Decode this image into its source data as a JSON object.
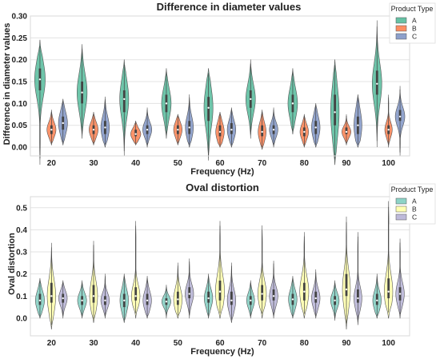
{
  "chart_data": [
    {
      "type": "violin",
      "title": "Difference in diameter values",
      "xlabel": "Frequency (Hz)",
      "ylabel": "Difference in diameter values",
      "categories": [
        "20",
        "30",
        "40",
        "50",
        "60",
        "70",
        "80",
        "90",
        "100"
      ],
      "ylim": [
        -0.02,
        0.3
      ],
      "yticks": [
        "0.00",
        "0.05",
        "0.10",
        "0.15",
        "0.20",
        "0.25",
        "0.30"
      ],
      "grid": true,
      "legend": {
        "title": "Product Type",
        "position": "top-right",
        "entries": [
          "A",
          "B",
          "C"
        ]
      },
      "series": [
        {
          "name": "A",
          "color": "#66c2a5",
          "stats": [
            {
              "min": -0.04,
              "q1": 0.13,
              "median": 0.155,
              "q3": 0.18,
              "max": 0.245,
              "width": 1.0
            },
            {
              "min": 0.02,
              "q1": 0.1,
              "median": 0.125,
              "q3": 0.15,
              "max": 0.235,
              "width": 0.95
            },
            {
              "min": -0.02,
              "q1": 0.08,
              "median": 0.11,
              "q3": 0.13,
              "max": 0.2,
              "width": 0.85
            },
            {
              "min": 0.02,
              "q1": 0.08,
              "median": 0.1,
              "q3": 0.12,
              "max": 0.18,
              "width": 0.9
            },
            {
              "min": -0.03,
              "q1": 0.06,
              "median": 0.09,
              "q3": 0.115,
              "max": 0.18,
              "width": 0.85
            },
            {
              "min": 0.02,
              "q1": 0.09,
              "median": 0.11,
              "q3": 0.13,
              "max": 0.2,
              "width": 0.9
            },
            {
              "min": 0.03,
              "q1": 0.08,
              "median": 0.1,
              "q3": 0.12,
              "max": 0.18,
              "width": 0.9
            },
            {
              "min": -0.04,
              "q1": 0.05,
              "median": 0.08,
              "q3": 0.12,
              "max": 0.2,
              "width": 0.8
            },
            {
              "min": 0.0,
              "q1": 0.12,
              "median": 0.145,
              "q3": 0.175,
              "max": 0.29,
              "width": 0.9
            }
          ]
        },
        {
          "name": "B",
          "color": "#fc8d62",
          "stats": [
            {
              "min": 0.005,
              "q1": 0.03,
              "median": 0.04,
              "q3": 0.05,
              "max": 0.085,
              "width": 0.85
            },
            {
              "min": 0.005,
              "q1": 0.03,
              "median": 0.04,
              "q3": 0.05,
              "max": 0.08,
              "width": 0.85
            },
            {
              "min": 0.005,
              "q1": 0.025,
              "median": 0.03,
              "q3": 0.04,
              "max": 0.06,
              "width": 0.95
            },
            {
              "min": 0.005,
              "q1": 0.03,
              "median": 0.04,
              "q3": 0.05,
              "max": 0.075,
              "width": 0.8
            },
            {
              "min": 0.0,
              "q1": 0.025,
              "median": 0.035,
              "q3": 0.05,
              "max": 0.08,
              "width": 0.8
            },
            {
              "min": -0.005,
              "q1": 0.025,
              "median": 0.035,
              "q3": 0.05,
              "max": 0.085,
              "width": 0.75
            },
            {
              "min": 0.0,
              "q1": 0.025,
              "median": 0.035,
              "q3": 0.045,
              "max": 0.075,
              "width": 0.8
            },
            {
              "min": 0.005,
              "q1": 0.03,
              "median": 0.035,
              "q3": 0.045,
              "max": 0.075,
              "width": 0.85
            },
            {
              "min": 0.0,
              "q1": 0.03,
              "median": 0.04,
              "q3": 0.05,
              "max": 0.12,
              "width": 0.7
            }
          ]
        },
        {
          "name": "C",
          "color": "#8da0cb",
          "stats": [
            {
              "min": 0.005,
              "q1": 0.04,
              "median": 0.055,
              "q3": 0.07,
              "max": 0.11,
              "width": 0.85
            },
            {
              "min": 0.0,
              "q1": 0.03,
              "median": 0.045,
              "q3": 0.06,
              "max": 0.115,
              "width": 0.8
            },
            {
              "min": 0.0,
              "q1": 0.03,
              "median": 0.04,
              "q3": 0.05,
              "max": 0.09,
              "width": 0.85
            },
            {
              "min": 0.0,
              "q1": 0.03,
              "median": 0.045,
              "q3": 0.06,
              "max": 0.12,
              "width": 0.75
            },
            {
              "min": 0.0,
              "q1": 0.03,
              "median": 0.04,
              "q3": 0.055,
              "max": 0.09,
              "width": 0.8
            },
            {
              "min": 0.0,
              "q1": 0.03,
              "median": 0.04,
              "q3": 0.05,
              "max": 0.09,
              "width": 0.8
            },
            {
              "min": 0.0,
              "q1": 0.03,
              "median": 0.045,
              "q3": 0.06,
              "max": 0.1,
              "width": 0.8
            },
            {
              "min": 0.0,
              "q1": 0.03,
              "median": 0.05,
              "q3": 0.07,
              "max": 0.12,
              "width": 0.75
            },
            {
              "min": -0.02,
              "q1": 0.06,
              "median": 0.07,
              "q3": 0.085,
              "max": 0.14,
              "width": 0.9
            }
          ]
        }
      ]
    },
    {
      "type": "violin",
      "title": "Oval distortion",
      "xlabel": "Frequency (Hz)",
      "ylabel": "Oval distortion",
      "categories": [
        "20",
        "30",
        "40",
        "50",
        "60",
        "70",
        "80",
        "90",
        "100"
      ],
      "ylim": [
        -0.08,
        0.55
      ],
      "yticks": [
        "0.0",
        "0.1",
        "0.2",
        "0.3",
        "0.4",
        "0.5"
      ],
      "grid": true,
      "legend": {
        "title": "Product Type",
        "position": "top-right",
        "entries": [
          "A",
          "B",
          "C"
        ]
      },
      "series": [
        {
          "name": "A",
          "color": "#8dd3c7",
          "stats": [
            {
              "min": 0.0,
              "q1": 0.06,
              "median": 0.08,
              "q3": 0.11,
              "max": 0.18,
              "width": 0.85
            },
            {
              "min": 0.0,
              "q1": 0.06,
              "median": 0.08,
              "q3": 0.1,
              "max": 0.17,
              "width": 0.85
            },
            {
              "min": -0.02,
              "q1": 0.05,
              "median": 0.08,
              "q3": 0.11,
              "max": 0.2,
              "width": 0.8
            },
            {
              "min": 0.0,
              "q1": 0.06,
              "median": 0.075,
              "q3": 0.09,
              "max": 0.15,
              "width": 0.85
            },
            {
              "min": 0.0,
              "q1": 0.07,
              "median": 0.09,
              "q3": 0.12,
              "max": 0.2,
              "width": 0.8
            },
            {
              "min": 0.0,
              "q1": 0.06,
              "median": 0.08,
              "q3": 0.1,
              "max": 0.17,
              "width": 0.75
            },
            {
              "min": 0.0,
              "q1": 0.06,
              "median": 0.085,
              "q3": 0.11,
              "max": 0.19,
              "width": 0.8
            },
            {
              "min": -0.01,
              "q1": 0.06,
              "median": 0.08,
              "q3": 0.1,
              "max": 0.17,
              "width": 0.8
            },
            {
              "min": 0.0,
              "q1": 0.06,
              "median": 0.08,
              "q3": 0.11,
              "max": 0.2,
              "width": 0.8
            }
          ]
        },
        {
          "name": "B",
          "color": "#ffffb3",
          "stats": [
            {
              "min": -0.05,
              "q1": 0.07,
              "median": 0.1,
              "q3": 0.16,
              "max": 0.34,
              "width": 0.8
            },
            {
              "min": -0.02,
              "q1": 0.07,
              "median": 0.1,
              "q3": 0.15,
              "max": 0.35,
              "width": 0.75
            },
            {
              "min": 0.0,
              "q1": 0.08,
              "median": 0.1,
              "q3": 0.14,
              "max": 0.44,
              "width": 0.8
            },
            {
              "min": 0.0,
              "q1": 0.06,
              "median": 0.085,
              "q3": 0.12,
              "max": 0.25,
              "width": 0.8
            },
            {
              "min": 0.0,
              "q1": 0.08,
              "median": 0.12,
              "q3": 0.17,
              "max": 0.44,
              "width": 0.85
            },
            {
              "min": 0.0,
              "q1": 0.08,
              "median": 0.11,
              "q3": 0.15,
              "max": 0.42,
              "width": 0.8
            },
            {
              "min": 0.0,
              "q1": 0.08,
              "median": 0.12,
              "q3": 0.16,
              "max": 0.39,
              "width": 0.85
            },
            {
              "min": -0.05,
              "q1": 0.1,
              "median": 0.13,
              "q3": 0.2,
              "max": 0.46,
              "width": 0.75
            },
            {
              "min": 0.0,
              "q1": 0.09,
              "median": 0.12,
              "q3": 0.18,
              "max": 0.53,
              "width": 0.8
            }
          ]
        },
        {
          "name": "C",
          "color": "#bebada",
          "stats": [
            {
              "min": 0.0,
              "q1": 0.07,
              "median": 0.09,
              "q3": 0.11,
              "max": 0.17,
              "width": 0.8
            },
            {
              "min": 0.0,
              "q1": 0.06,
              "median": 0.08,
              "q3": 0.1,
              "max": 0.2,
              "width": 0.8
            },
            {
              "min": 0.0,
              "q1": 0.06,
              "median": 0.08,
              "q3": 0.11,
              "max": 0.19,
              "width": 0.8
            },
            {
              "min": 0.0,
              "q1": 0.09,
              "median": 0.11,
              "q3": 0.14,
              "max": 0.27,
              "width": 0.8
            },
            {
              "min": -0.02,
              "q1": 0.06,
              "median": 0.08,
              "q3": 0.12,
              "max": 0.25,
              "width": 0.8
            },
            {
              "min": 0.0,
              "q1": 0.08,
              "median": 0.1,
              "q3": 0.13,
              "max": 0.26,
              "width": 0.8
            },
            {
              "min": 0.0,
              "q1": 0.07,
              "median": 0.09,
              "q3": 0.12,
              "max": 0.22,
              "width": 0.8
            },
            {
              "min": -0.03,
              "q1": 0.07,
              "median": 0.09,
              "q3": 0.13,
              "max": 0.39,
              "width": 0.75
            },
            {
              "min": 0.0,
              "q1": 0.08,
              "median": 0.11,
              "q3": 0.14,
              "max": 0.36,
              "width": 0.8
            }
          ]
        }
      ]
    }
  ]
}
